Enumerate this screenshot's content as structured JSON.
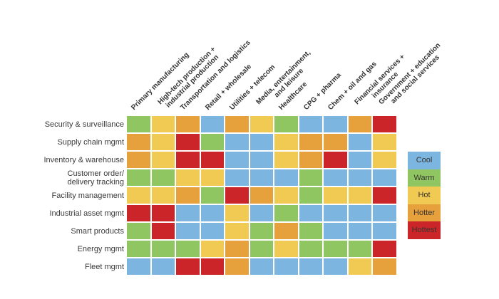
{
  "chart_data": {
    "type": "heatmap",
    "title": "",
    "xlabel": "",
    "ylabel": "",
    "grid": false,
    "legend_position": "right",
    "columns": [
      [
        "Primary manufacturing"
      ],
      [
        "High-tech production +",
        "industrial production"
      ],
      [
        "Transportation and logistics"
      ],
      [
        "Retail + wholesale"
      ],
      [
        "Utilities + telecom"
      ],
      [
        "Media, entertainment,",
        "and leisure"
      ],
      [
        "Healthcare"
      ],
      [
        "CPG + pharma"
      ],
      [
        "Chem + oil and gas"
      ],
      [
        "Financial services +",
        "insurance"
      ],
      [
        "Government + education",
        "and social services"
      ]
    ],
    "rows": [
      [
        "Security & surveillance"
      ],
      [
        "Supply chain mgmt"
      ],
      [
        "Inventory & warehouse"
      ],
      [
        "Customer order/",
        "delivery tracking"
      ],
      [
        "Facility management"
      ],
      [
        "Industrial asset mgmt"
      ],
      [
        "Smart products"
      ],
      [
        "Energy mgmt"
      ],
      [
        "Fleet mgmt"
      ]
    ],
    "values": [
      [
        "warm",
        "hot",
        "hotter",
        "cool",
        "hotter",
        "hot",
        "warm",
        "cool",
        "cool",
        "hotter",
        "hottest"
      ],
      [
        "hotter",
        "hot",
        "hottest",
        "warm",
        "cool",
        "cool",
        "hot",
        "hotter",
        "hotter",
        "cool",
        "hot"
      ],
      [
        "hotter",
        "hot",
        "hottest",
        "hottest",
        "cool",
        "cool",
        "hot",
        "hotter",
        "hottest",
        "cool",
        "hot"
      ],
      [
        "warm",
        "warm",
        "hot",
        "hot",
        "cool",
        "cool",
        "cool",
        "warm",
        "cool",
        "cool",
        "cool"
      ],
      [
        "hot",
        "hot",
        "hotter",
        "warm",
        "hottest",
        "hotter",
        "hot",
        "warm",
        "hot",
        "hot",
        "hottest"
      ],
      [
        "hottest",
        "hottest",
        "cool",
        "cool",
        "hot",
        "cool",
        "warm",
        "cool",
        "cool",
        "cool",
        "cool"
      ],
      [
        "warm",
        "hottest",
        "cool",
        "cool",
        "hot",
        "warm",
        "hotter",
        "warm",
        "cool",
        "cool",
        "cool"
      ],
      [
        "warm",
        "warm",
        "warm",
        "hot",
        "hotter",
        "warm",
        "hot",
        "warm",
        "warm",
        "warm",
        "hottest"
      ],
      [
        "cool",
        "cool",
        "hottest",
        "hottest",
        "hotter",
        "cool",
        "cool",
        "cool",
        "cool",
        "hot",
        "hotter"
      ]
    ],
    "level_colors": {
      "cool": "#7cb5df",
      "warm": "#8fc661",
      "hot": "#f0ca52",
      "hotter": "#e6a03c",
      "hottest": "#cc2529"
    },
    "legend": [
      {
        "label": "Cool",
        "level": "cool"
      },
      {
        "label": "Warm",
        "level": "warm"
      },
      {
        "label": "Hot",
        "level": "hot"
      },
      {
        "label": "Hotter",
        "level": "hotter"
      },
      {
        "label": "Hottest",
        "level": "hottest"
      }
    ]
  }
}
